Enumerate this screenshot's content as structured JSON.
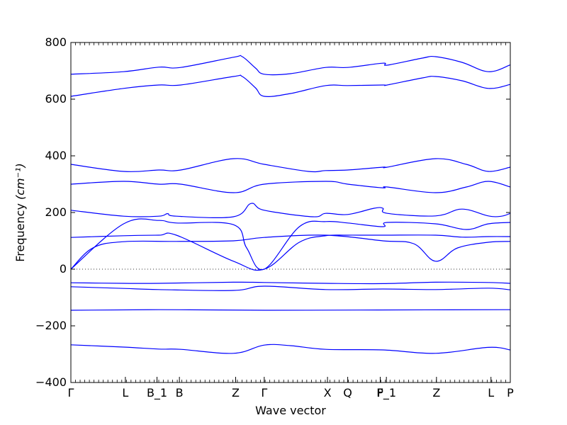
{
  "chart_data": {
    "type": "line",
    "title": "",
    "xlabel": "Wave vector",
    "ylabel": "Frequency ",
    "ylabel_unit": "(cm⁻¹)",
    "ylim": [
      -400,
      800
    ],
    "yticks": [
      -400,
      -200,
      0,
      200,
      400,
      600,
      800
    ],
    "x_range": [
      0,
      100
    ],
    "line_color": "#0000ff",
    "zero_line_color": "#333333",
    "ticks": [
      {
        "x": 0,
        "label": "Γ"
      },
      {
        "x": 12.4,
        "label": "L"
      },
      {
        "x": 19.6,
        "label": "B_1"
      },
      {
        "x": 24.7,
        "label": "B"
      },
      {
        "x": 37.5,
        "label": "Z"
      },
      {
        "x": 44.0,
        "label": "Γ"
      },
      {
        "x": 58.4,
        "label": "X"
      },
      {
        "x": 63.0,
        "label": "Q"
      },
      {
        "x": 70.4,
        "label": "F"
      },
      {
        "x": 71.8,
        "label": "P_1"
      },
      {
        "x": 83.2,
        "label": "Z"
      },
      {
        "x": 95.6,
        "label": "L"
      },
      {
        "x": 100,
        "label": "P"
      }
    ],
    "series": [
      {
        "points": [
          [
            0,
            688
          ],
          [
            12,
            697
          ],
          [
            20,
            713
          ],
          [
            25,
            712
          ],
          [
            37,
            748
          ],
          [
            39,
            750
          ],
          [
            42,
            710
          ],
          [
            44,
            688
          ],
          [
            50,
            690
          ],
          [
            58,
            712
          ],
          [
            63,
            712
          ],
          [
            71,
            727
          ],
          [
            72,
            720
          ],
          [
            80,
            745
          ],
          [
            83,
            750
          ],
          [
            89,
            730
          ],
          [
            95,
            697
          ],
          [
            100,
            721
          ]
        ]
      },
      {
        "points": [
          [
            0,
            610
          ],
          [
            12,
            638
          ],
          [
            20,
            650
          ],
          [
            25,
            650
          ],
          [
            37,
            680
          ],
          [
            39,
            680
          ],
          [
            42,
            640
          ],
          [
            44,
            610
          ],
          [
            50,
            620
          ],
          [
            58,
            648
          ],
          [
            63,
            648
          ],
          [
            71,
            650
          ],
          [
            72,
            650
          ],
          [
            80,
            675
          ],
          [
            83,
            680
          ],
          [
            89,
            665
          ],
          [
            95,
            638
          ],
          [
            100,
            652
          ]
        ]
      },
      {
        "points": [
          [
            0,
            370
          ],
          [
            12,
            345
          ],
          [
            20,
            350
          ],
          [
            25,
            350
          ],
          [
            37,
            390
          ],
          [
            44,
            370
          ],
          [
            54,
            345
          ],
          [
            58,
            348
          ],
          [
            63,
            350
          ],
          [
            71,
            360
          ],
          [
            72,
            360
          ],
          [
            83,
            390
          ],
          [
            90,
            370
          ],
          [
            95,
            345
          ],
          [
            100,
            360
          ]
        ]
      },
      {
        "points": [
          [
            0,
            300
          ],
          [
            12,
            310
          ],
          [
            20,
            300
          ],
          [
            25,
            300
          ],
          [
            37,
            270
          ],
          [
            44,
            300
          ],
          [
            58,
            310
          ],
          [
            63,
            300
          ],
          [
            71,
            287
          ],
          [
            72,
            290
          ],
          [
            83,
            270
          ],
          [
            90,
            290
          ],
          [
            95,
            310
          ],
          [
            100,
            290
          ]
        ]
      },
      {
        "points": [
          [
            0,
            208
          ],
          [
            12,
            187
          ],
          [
            20,
            187
          ],
          [
            22,
            196
          ],
          [
            24,
            187
          ],
          [
            37,
            185
          ],
          [
            41,
            232
          ],
          [
            44,
            208
          ],
          [
            55,
            185
          ],
          [
            58,
            197
          ],
          [
            63,
            193
          ],
          [
            69,
            215
          ],
          [
            71,
            215
          ],
          [
            72,
            197
          ],
          [
            83,
            188
          ],
          [
            89,
            212
          ],
          [
            95,
            188
          ],
          [
            98,
            187
          ],
          [
            100,
            197
          ]
        ]
      },
      {
        "points": [
          [
            0,
            0
          ],
          [
            12,
            160
          ],
          [
            20,
            172
          ],
          [
            24,
            163
          ],
          [
            37,
            157
          ],
          [
            40,
            75
          ],
          [
            44,
            0
          ],
          [
            52,
            150
          ],
          [
            58,
            168
          ],
          [
            63,
            163
          ],
          [
            71,
            150
          ],
          [
            72,
            165
          ],
          [
            83,
            160
          ],
          [
            90,
            140
          ],
          [
            95,
            160
          ],
          [
            100,
            165
          ]
        ]
      },
      {
        "points": [
          [
            0,
            112
          ],
          [
            12,
            118
          ],
          [
            20,
            120
          ],
          [
            24,
            120
          ],
          [
            37,
            28
          ],
          [
            44,
            0
          ],
          [
            52,
            95
          ],
          [
            58,
            118
          ],
          [
            63,
            120
          ],
          [
            71,
            120
          ],
          [
            83,
            120
          ],
          [
            89,
            113
          ],
          [
            95,
            115
          ],
          [
            100,
            115
          ]
        ]
      },
      {
        "points": [
          [
            0,
            0
          ],
          [
            5,
            75
          ],
          [
            12,
            97
          ],
          [
            24,
            98
          ],
          [
            37,
            100
          ],
          [
            44,
            112
          ],
          [
            58,
            120
          ],
          [
            71,
            100
          ],
          [
            78,
            90
          ],
          [
            83,
            28
          ],
          [
            88,
            75
          ],
          [
            95,
            95
          ],
          [
            100,
            98
          ]
        ]
      },
      {
        "points": [
          [
            0,
            -48
          ],
          [
            12,
            -50
          ],
          [
            20,
            -50
          ],
          [
            37,
            -46
          ],
          [
            44,
            -47
          ],
          [
            58,
            -50
          ],
          [
            71,
            -51
          ],
          [
            83,
            -46
          ],
          [
            95,
            -47
          ],
          [
            100,
            -50
          ]
        ]
      },
      {
        "points": [
          [
            0,
            -62
          ],
          [
            12,
            -68
          ],
          [
            20,
            -72
          ],
          [
            37,
            -75
          ],
          [
            44,
            -60
          ],
          [
            58,
            -72
          ],
          [
            71,
            -70
          ],
          [
            83,
            -72
          ],
          [
            95,
            -67
          ],
          [
            100,
            -73
          ]
        ]
      },
      {
        "points": [
          [
            0,
            -145
          ],
          [
            20,
            -143
          ],
          [
            44,
            -145
          ],
          [
            70,
            -144
          ],
          [
            100,
            -143
          ]
        ]
      },
      {
        "points": [
          [
            0,
            -267
          ],
          [
            12,
            -275
          ],
          [
            20,
            -282
          ],
          [
            25,
            -283
          ],
          [
            37,
            -297
          ],
          [
            44,
            -268
          ],
          [
            50,
            -270
          ],
          [
            58,
            -283
          ],
          [
            71,
            -285
          ],
          [
            83,
            -297
          ],
          [
            95,
            -276
          ],
          [
            100,
            -285
          ]
        ]
      }
    ]
  }
}
